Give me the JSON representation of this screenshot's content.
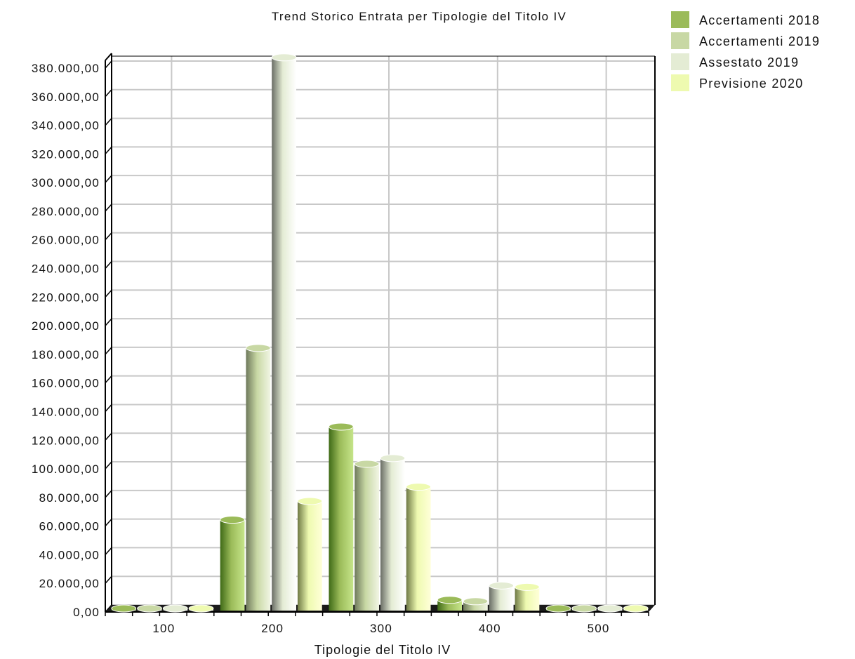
{
  "chart_data": {
    "type": "bar",
    "title": "Trend Storico Entrata per Tipologie del Titolo IV",
    "xlabel": "Tipologie del Titolo IV",
    "ylabel": "",
    "categories": [
      "100",
      "200",
      "300",
      "400",
      "500"
    ],
    "ylim": [
      0,
      380000
    ],
    "y_tick_step": 20000,
    "y_tick_labels": [
      "0,00",
      "20.000,00",
      "40.000,00",
      "60.000,00",
      "80.000,00",
      "100.000,00",
      "120.000,00",
      "140.000,00",
      "160.000,00",
      "180.000,00",
      "200.000,00",
      "220.000,00",
      "240.000,00",
      "260.000,00",
      "280.000,00",
      "300.000,00",
      "320.000,00",
      "340.000,00",
      "360.000,00",
      "380.000,00"
    ],
    "grid": true,
    "legend_position": "top-right",
    "series": [
      {
        "name": "Accertamenti 2018",
        "color": "#9bbb59",
        "values": [
          0,
          62000,
          127000,
          6000,
          0
        ]
      },
      {
        "name": "Accertamenti 2019",
        "color": "#c8d8a4",
        "values": [
          0,
          182000,
          101000,
          5000,
          0
        ]
      },
      {
        "name": "Assestato 2019",
        "color": "#e4ecd4",
        "values": [
          0,
          385000,
          105000,
          16000,
          0
        ]
      },
      {
        "name": "Previsione 2020",
        "color": "#eefab0",
        "values": [
          0,
          75000,
          85000,
          15000,
          0
        ]
      }
    ]
  }
}
